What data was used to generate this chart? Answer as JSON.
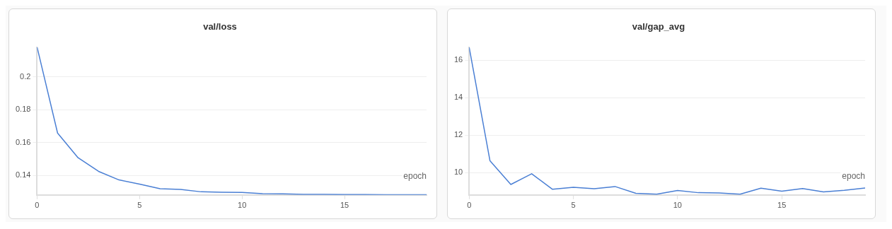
{
  "chart_data": [
    {
      "type": "line",
      "title": "val/loss",
      "xlabel": "epoch",
      "x": [
        0,
        1,
        2,
        3,
        4,
        5,
        6,
        7,
        8,
        9,
        10,
        11,
        12,
        13,
        14,
        15,
        16,
        17,
        18,
        19
      ],
      "series": [
        {
          "color": "#4a7fd4",
          "values": [
            0.218,
            0.1658,
            0.1508,
            0.1425,
            0.1373,
            0.1348,
            0.132,
            0.1315,
            0.1301,
            0.1298,
            0.1297,
            0.129,
            0.1289,
            0.1285,
            0.1285,
            0.1284,
            0.1284,
            0.1283,
            0.1283,
            0.1283
          ]
        }
      ],
      "xlim": [
        0,
        19
      ],
      "xticks": [
        0,
        5,
        10,
        15
      ],
      "ylim": [
        0.1282,
        0.218
      ],
      "yticks": [
        0.14,
        0.16,
        0.18,
        0.2
      ],
      "grid": "y"
    },
    {
      "type": "line",
      "title": "val/gap_avg",
      "xlabel": "epoch",
      "x": [
        0,
        1,
        2,
        3,
        4,
        5,
        6,
        7,
        8,
        9,
        10,
        11,
        12,
        13,
        14,
        15,
        16,
        17,
        18,
        19
      ],
      "series": [
        {
          "color": "#4a7fd4",
          "values": [
            16.69,
            10.62,
            9.36,
            9.93,
            9.1,
            9.21,
            9.13,
            9.25,
            8.89,
            8.84,
            9.04,
            8.92,
            8.91,
            8.84,
            9.16,
            9.0,
            9.14,
            8.96,
            9.05,
            9.17
          ]
        }
      ],
      "xlim": [
        0,
        19
      ],
      "xticks": [
        0,
        5,
        10,
        15
      ],
      "ylim": [
        8.8,
        16.7
      ],
      "yticks": [
        10,
        12,
        14,
        16
      ],
      "grid": "y"
    }
  ]
}
